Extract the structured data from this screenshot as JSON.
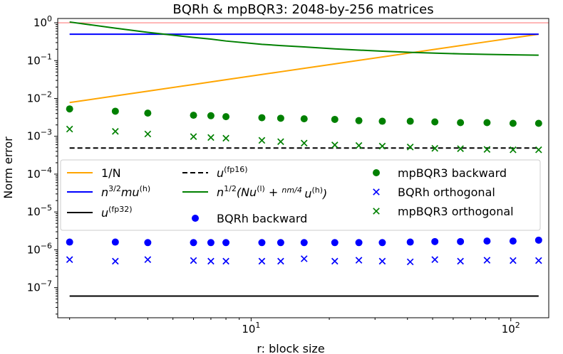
{
  "chart_data": {
    "type": "scatter",
    "title": "BQRh & mpBQR3: 2048-by-256 matrices",
    "xlabel": "r: block size",
    "ylabel": "Norm error",
    "xscale": "log",
    "yscale": "log",
    "xlim": [
      1.8,
      140
    ],
    "ylim": [
      1.6e-08,
      1.3
    ],
    "x_ticks": [
      {
        "value": 10,
        "base": "10",
        "exp": "1"
      },
      {
        "value": 100,
        "base": "10",
        "exp": "2"
      }
    ],
    "y_ticks": [
      {
        "value": 1e-07,
        "base": "10",
        "exp": "−7"
      },
      {
        "value": 1e-06,
        "base": "10",
        "exp": "−6"
      },
      {
        "value": 1e-05,
        "base": "10",
        "exp": "−5"
      },
      {
        "value": 0.0001,
        "base": "10",
        "exp": "−4"
      },
      {
        "value": 0.001,
        "base": "10",
        "exp": "−3"
      },
      {
        "value": 0.01,
        "base": "10",
        "exp": "−2"
      },
      {
        "value": 0.1,
        "base": "10",
        "exp": "−1"
      },
      {
        "value": 1,
        "base": "10",
        "exp": "0"
      }
    ],
    "legend_position": "center-left",
    "x": [
      2,
      3,
      4,
      6,
      7,
      8,
      11,
      13,
      16,
      21,
      26,
      32,
      41,
      51,
      64,
      81,
      102,
      128
    ],
    "lines": [
      {
        "name": "1/N",
        "color": "#ffa500",
        "dash": "solid",
        "y": [
          0.0078,
          0.0117,
          0.0156,
          0.0234,
          0.0273,
          0.0313,
          0.043,
          0.0508,
          0.0625,
          0.082,
          0.1016,
          0.125,
          0.16,
          0.199,
          0.25,
          0.316,
          0.398,
          0.5
        ]
      },
      {
        "name": "n^{3/2}mu^{(h)}",
        "color": "#0000ff",
        "dash": "solid",
        "y": [
          0.5,
          0.5,
          0.5,
          0.5,
          0.5,
          0.5,
          0.5,
          0.5,
          0.5,
          0.5,
          0.5,
          0.5,
          0.5,
          0.5,
          0.5,
          0.5,
          0.5,
          0.5
        ]
      },
      {
        "name": "u^{(fp32)}",
        "color": "#000000",
        "dash": "solid",
        "y": [
          6e-08,
          6e-08,
          6e-08,
          6e-08,
          6e-08,
          6e-08,
          6e-08,
          6e-08,
          6e-08,
          6e-08,
          6e-08,
          6e-08,
          6e-08,
          6e-08,
          6e-08,
          6e-08,
          6e-08,
          6e-08
        ]
      },
      {
        "name": "u^{(fp16)}",
        "color": "#000000",
        "dash": "dashed",
        "y": [
          0.00049,
          0.00049,
          0.00049,
          0.00049,
          0.00049,
          0.00049,
          0.00049,
          0.00049,
          0.00049,
          0.00049,
          0.00049,
          0.00049,
          0.00049,
          0.00049,
          0.00049,
          0.00049,
          0.00049,
          0.00049
        ]
      },
      {
        "name": "n^{1/2}(Nu^{(l)}+nm/4 u^{(h)})",
        "color": "#008000",
        "dash": "solid",
        "y": [
          1.05,
          0.72,
          0.56,
          0.41,
          0.37,
          0.33,
          0.27,
          0.25,
          0.23,
          0.205,
          0.19,
          0.178,
          0.166,
          0.158,
          0.151,
          0.146,
          0.142,
          0.139
        ]
      }
    ],
    "series": [
      {
        "name": "BQRh backward",
        "color": "#0000ff",
        "marker": "circle",
        "y": [
          1.6e-06,
          1.6e-06,
          1.55e-06,
          1.55e-06,
          1.55e-06,
          1.55e-06,
          1.55e-06,
          1.55e-06,
          1.55e-06,
          1.55e-06,
          1.55e-06,
          1.55e-06,
          1.6e-06,
          1.65e-06,
          1.65e-06,
          1.7e-06,
          1.7e-06,
          1.8e-06
        ]
      },
      {
        "name": "mpBQR3 backward",
        "color": "#008000",
        "marker": "circle",
        "y": [
          0.0053,
          0.0046,
          0.0041,
          0.0036,
          0.0035,
          0.0033,
          0.0031,
          0.003,
          0.0029,
          0.0028,
          0.0026,
          0.0025,
          0.0025,
          0.0024,
          0.0023,
          0.0023,
          0.0022,
          0.0022
        ]
      },
      {
        "name": "BQRh orthogonal",
        "color": "#0000ff",
        "marker": "x",
        "y": [
          5.5e-07,
          5e-07,
          5.5e-07,
          5.2e-07,
          5e-07,
          5e-07,
          5e-07,
          5e-07,
          5.8e-07,
          5e-07,
          5.3e-07,
          5e-07,
          4.8e-07,
          5.5e-07,
          5e-07,
          5.3e-07,
          5.2e-07,
          5.2e-07
        ]
      },
      {
        "name": "mpBQR3 orthogonal",
        "color": "#008000",
        "marker": "x",
        "y": [
          0.00155,
          0.00135,
          0.00115,
          0.00098,
          0.00093,
          0.00089,
          0.00078,
          0.00072,
          0.00066,
          0.00059,
          0.00057,
          0.00055,
          0.00052,
          0.00048,
          0.00047,
          0.00045,
          0.00044,
          0.00044
        ]
      }
    ],
    "reference_line": {
      "color": "#ff7f7f",
      "y": 1.0
    },
    "legend": [
      {
        "label": "1/N",
        "kind": "line",
        "color": "#ffa500",
        "dash": "solid"
      },
      {
        "label": "n^{3/2}mu^{(h)}",
        "kind": "line",
        "color": "#0000ff",
        "dash": "solid",
        "math": [
          [
            "n",
            ""
          ],
          [
            "3/2",
            "sup"
          ],
          [
            "mu",
            ""
          ],
          [
            "(h)",
            "sup"
          ]
        ]
      },
      {
        "label": "u^{(fp32)}",
        "kind": "line",
        "color": "#000000",
        "dash": "solid",
        "math": [
          [
            "u",
            ""
          ],
          [
            "(fp32)",
            "sup"
          ]
        ]
      },
      {
        "label": "u^{(fp16)}",
        "kind": "line",
        "color": "#000000",
        "dash": "dashed",
        "math": [
          [
            "u",
            ""
          ],
          [
            "(fp16)",
            "sup"
          ]
        ]
      },
      {
        "label": "n^{1/2}(Nu^{(l)}+nm/4 u^{(h)})",
        "kind": "line",
        "color": "#008000",
        "dash": "solid",
        "math": [
          [
            "n",
            ""
          ],
          [
            "1/2",
            "sup"
          ],
          [
            "(Nu",
            ""
          ],
          [
            "(l)",
            "sup"
          ],
          [
            " + ",
            ""
          ],
          [
            "nm/4",
            "frac"
          ],
          [
            "u",
            ""
          ],
          [
            "(h)",
            "sup"
          ],
          [
            ")",
            ""
          ]
        ]
      },
      {
        "label": "BQRh backward",
        "kind": "circle",
        "color": "#0000ff"
      },
      {
        "label": "mpBQR3 backward",
        "kind": "circle",
        "color": "#008000"
      },
      {
        "label": "BQRh orthogonal",
        "kind": "x",
        "color": "#0000ff"
      },
      {
        "label": "mpBQR3 orthogonal",
        "kind": "x",
        "color": "#008000"
      }
    ]
  }
}
